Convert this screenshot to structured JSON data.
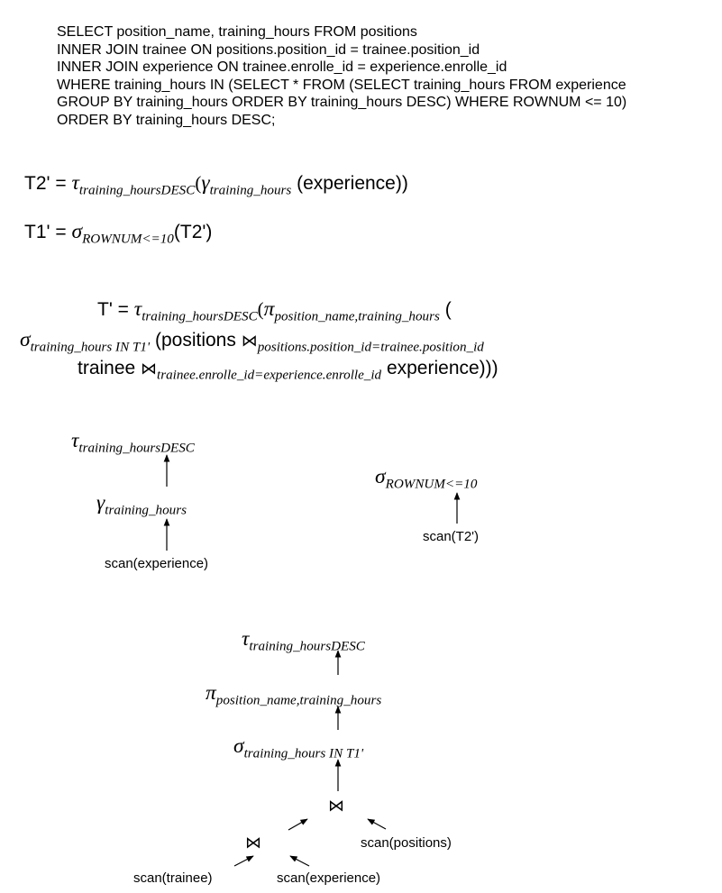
{
  "sql": {
    "lines": [
      "SELECT position_name, training_hours FROM positions",
      "INNER JOIN trainee ON positions.position_id = trainee.position_id",
      "INNER JOIN experience ON trainee.enrolle_id = experience.enrolle_id",
      "WHERE training_hours IN (SELECT * FROM (SELECT training_hours FROM experience",
      "GROUP BY training_hours ORDER BY training_hours DESC) WHERE ROWNUM <= 10)",
      "ORDER BY training_hours DESC;"
    ]
  },
  "equations": {
    "t2": {
      "lhs": "T2' = ",
      "tau": "τ",
      "tau_sub": "training_hoursDESC",
      "open": "(",
      "gamma": "γ",
      "gamma_sub": "training_hours",
      "arg": "(experience))"
    },
    "t1": {
      "lhs": "T1' = ",
      "sigma": "σ",
      "sigma_sub": "ROWNUM<=10",
      "arg": "(T2')"
    },
    "t": {
      "lhs": "T' = ",
      "tau": "τ",
      "tau_sub": "training_hoursDESC",
      "open1": "(",
      "pi": "π",
      "pi_sub": "position_name,training_hours",
      "open2": " (",
      "sigma": "σ",
      "sigma_sub": "training_hours IN T1'",
      "positions": "(positions ",
      "join": "⋈",
      "join1_sub": "positions.position_id=trainee.position_id",
      "trainee": "trainee ",
      "join2_sub": "trainee.enrolle_id=experience.enrolle_id",
      "experience": " experience)))"
    }
  },
  "tree1": {
    "tau": "τ",
    "tau_sub": "training_hoursDESC",
    "gamma": "γ",
    "gamma_sub": "training_hours",
    "scan": "scan(experience)"
  },
  "tree2": {
    "sigma": "σ",
    "sigma_sub": "ROWNUM<=10",
    "scan": "scan(T2')"
  },
  "tree3": {
    "tau": "τ",
    "tau_sub": "training_hoursDESC",
    "pi": "π",
    "pi_sub": "position_name,training_hours",
    "sigma": "σ",
    "sigma_sub": "training_hours IN T1'",
    "join": "⋈",
    "scan_positions": "scan(positions)",
    "scan_trainee": "scan(trainee)",
    "scan_experience": "scan(experience)"
  }
}
